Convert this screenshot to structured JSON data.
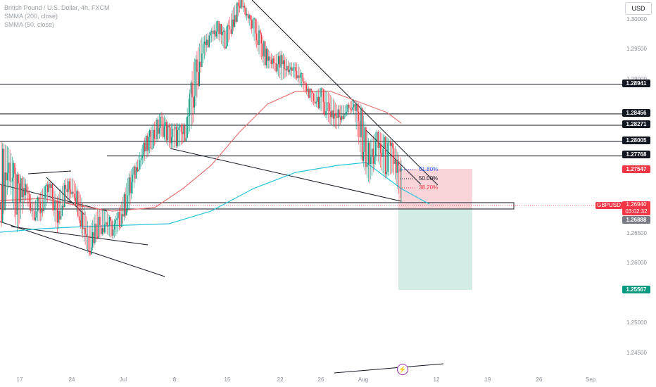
{
  "chart_data": {
    "type": "candlestick",
    "title": "British Pound / U.S. Dollar, 4h, FXCM",
    "indicators": [
      {
        "label": "SMMA (200, close)",
        "color": "#26c6da"
      },
      {
        "label": "SMMA (50, close)",
        "color": "#e57373"
      }
    ],
    "currency": "USD",
    "symbol": "GBPUSD",
    "y_ticks": [
      "1.30000",
      "1.29500",
      "1.29000",
      "1.26500",
      "1.26000",
      "1.25000",
      "1.24500"
    ],
    "x_ticks": [
      "17",
      "24",
      "Jul",
      "8",
      "15",
      "22",
      "26",
      "Aug",
      "12",
      "19",
      "26",
      "Sep"
    ],
    "ylim": [
      1.2436,
      1.303
    ],
    "horizontal_levels": [
      "1.28941",
      "1.28456",
      "1.28271",
      "1.28005",
      "1.27768"
    ],
    "price_labels": {
      "stop": "1.27547",
      "current": "1.26940",
      "countdown": "03:02:32",
      "entry": "1.26888",
      "target": "1.25567"
    },
    "fib_levels": [
      {
        "label": "61.80%",
        "color": "#2962ff"
      },
      {
        "label": "50.00%",
        "color": "#131722"
      },
      {
        "label": "38.20%",
        "color": "#f23645"
      }
    ],
    "candles_key": [
      [
        1.28,
        1.266
      ],
      [
        1.279,
        1.273
      ],
      [
        1.275,
        1.265
      ],
      [
        1.274,
        1.2705
      ],
      [
        1.27,
        1.267
      ],
      [
        1.272,
        1.267
      ],
      [
        1.274,
        1.271
      ],
      [
        1.271,
        1.265
      ],
      [
        1.274,
        1.27
      ],
      [
        1.274,
        1.271
      ],
      [
        1.271,
        1.265
      ],
      [
        1.266,
        1.261
      ],
      [
        1.269,
        1.264
      ],
      [
        1.269,
        1.265
      ],
      [
        1.267,
        1.264
      ],
      [
        1.27,
        1.266
      ],
      [
        1.275,
        1.269
      ],
      [
        1.277,
        1.275
      ],
      [
        1.281,
        1.277
      ],
      [
        1.283,
        1.279
      ],
      [
        1.285,
        1.281
      ],
      [
        1.283,
        1.279
      ],
      [
        1.283,
        1.279
      ],
      [
        1.283,
        1.28
      ],
      [
        1.293,
        1.283
      ],
      [
        1.297,
        1.292
      ],
      [
        1.298,
        1.296
      ],
      [
        1.3,
        1.297
      ],
      [
        1.2985,
        1.295
      ],
      [
        1.302,
        1.298
      ],
      [
        1.304,
        1.302
      ],
      [
        1.301,
        1.299
      ],
      [
        1.3,
        1.295
      ],
      [
        1.296,
        1.292
      ],
      [
        1.294,
        1.292
      ],
      [
        1.295,
        1.29
      ],
      [
        1.293,
        1.291
      ],
      [
        1.293,
        1.29
      ],
      [
        1.29,
        1.288
      ],
      [
        1.288,
        1.286
      ],
      [
        1.289,
        1.285
      ],
      [
        1.288,
        1.283
      ],
      [
        1.286,
        1.282
      ],
      [
        1.286,
        1.284
      ],
      [
        1.287,
        1.285
      ],
      [
        1.286,
        1.277
      ],
      [
        1.28,
        1.273
      ],
      [
        1.282,
        1.277
      ],
      [
        1.281,
        1.274
      ],
      [
        1.28,
        1.275
      ],
      [
        1.277,
        1.27
      ]
    ]
  }
}
